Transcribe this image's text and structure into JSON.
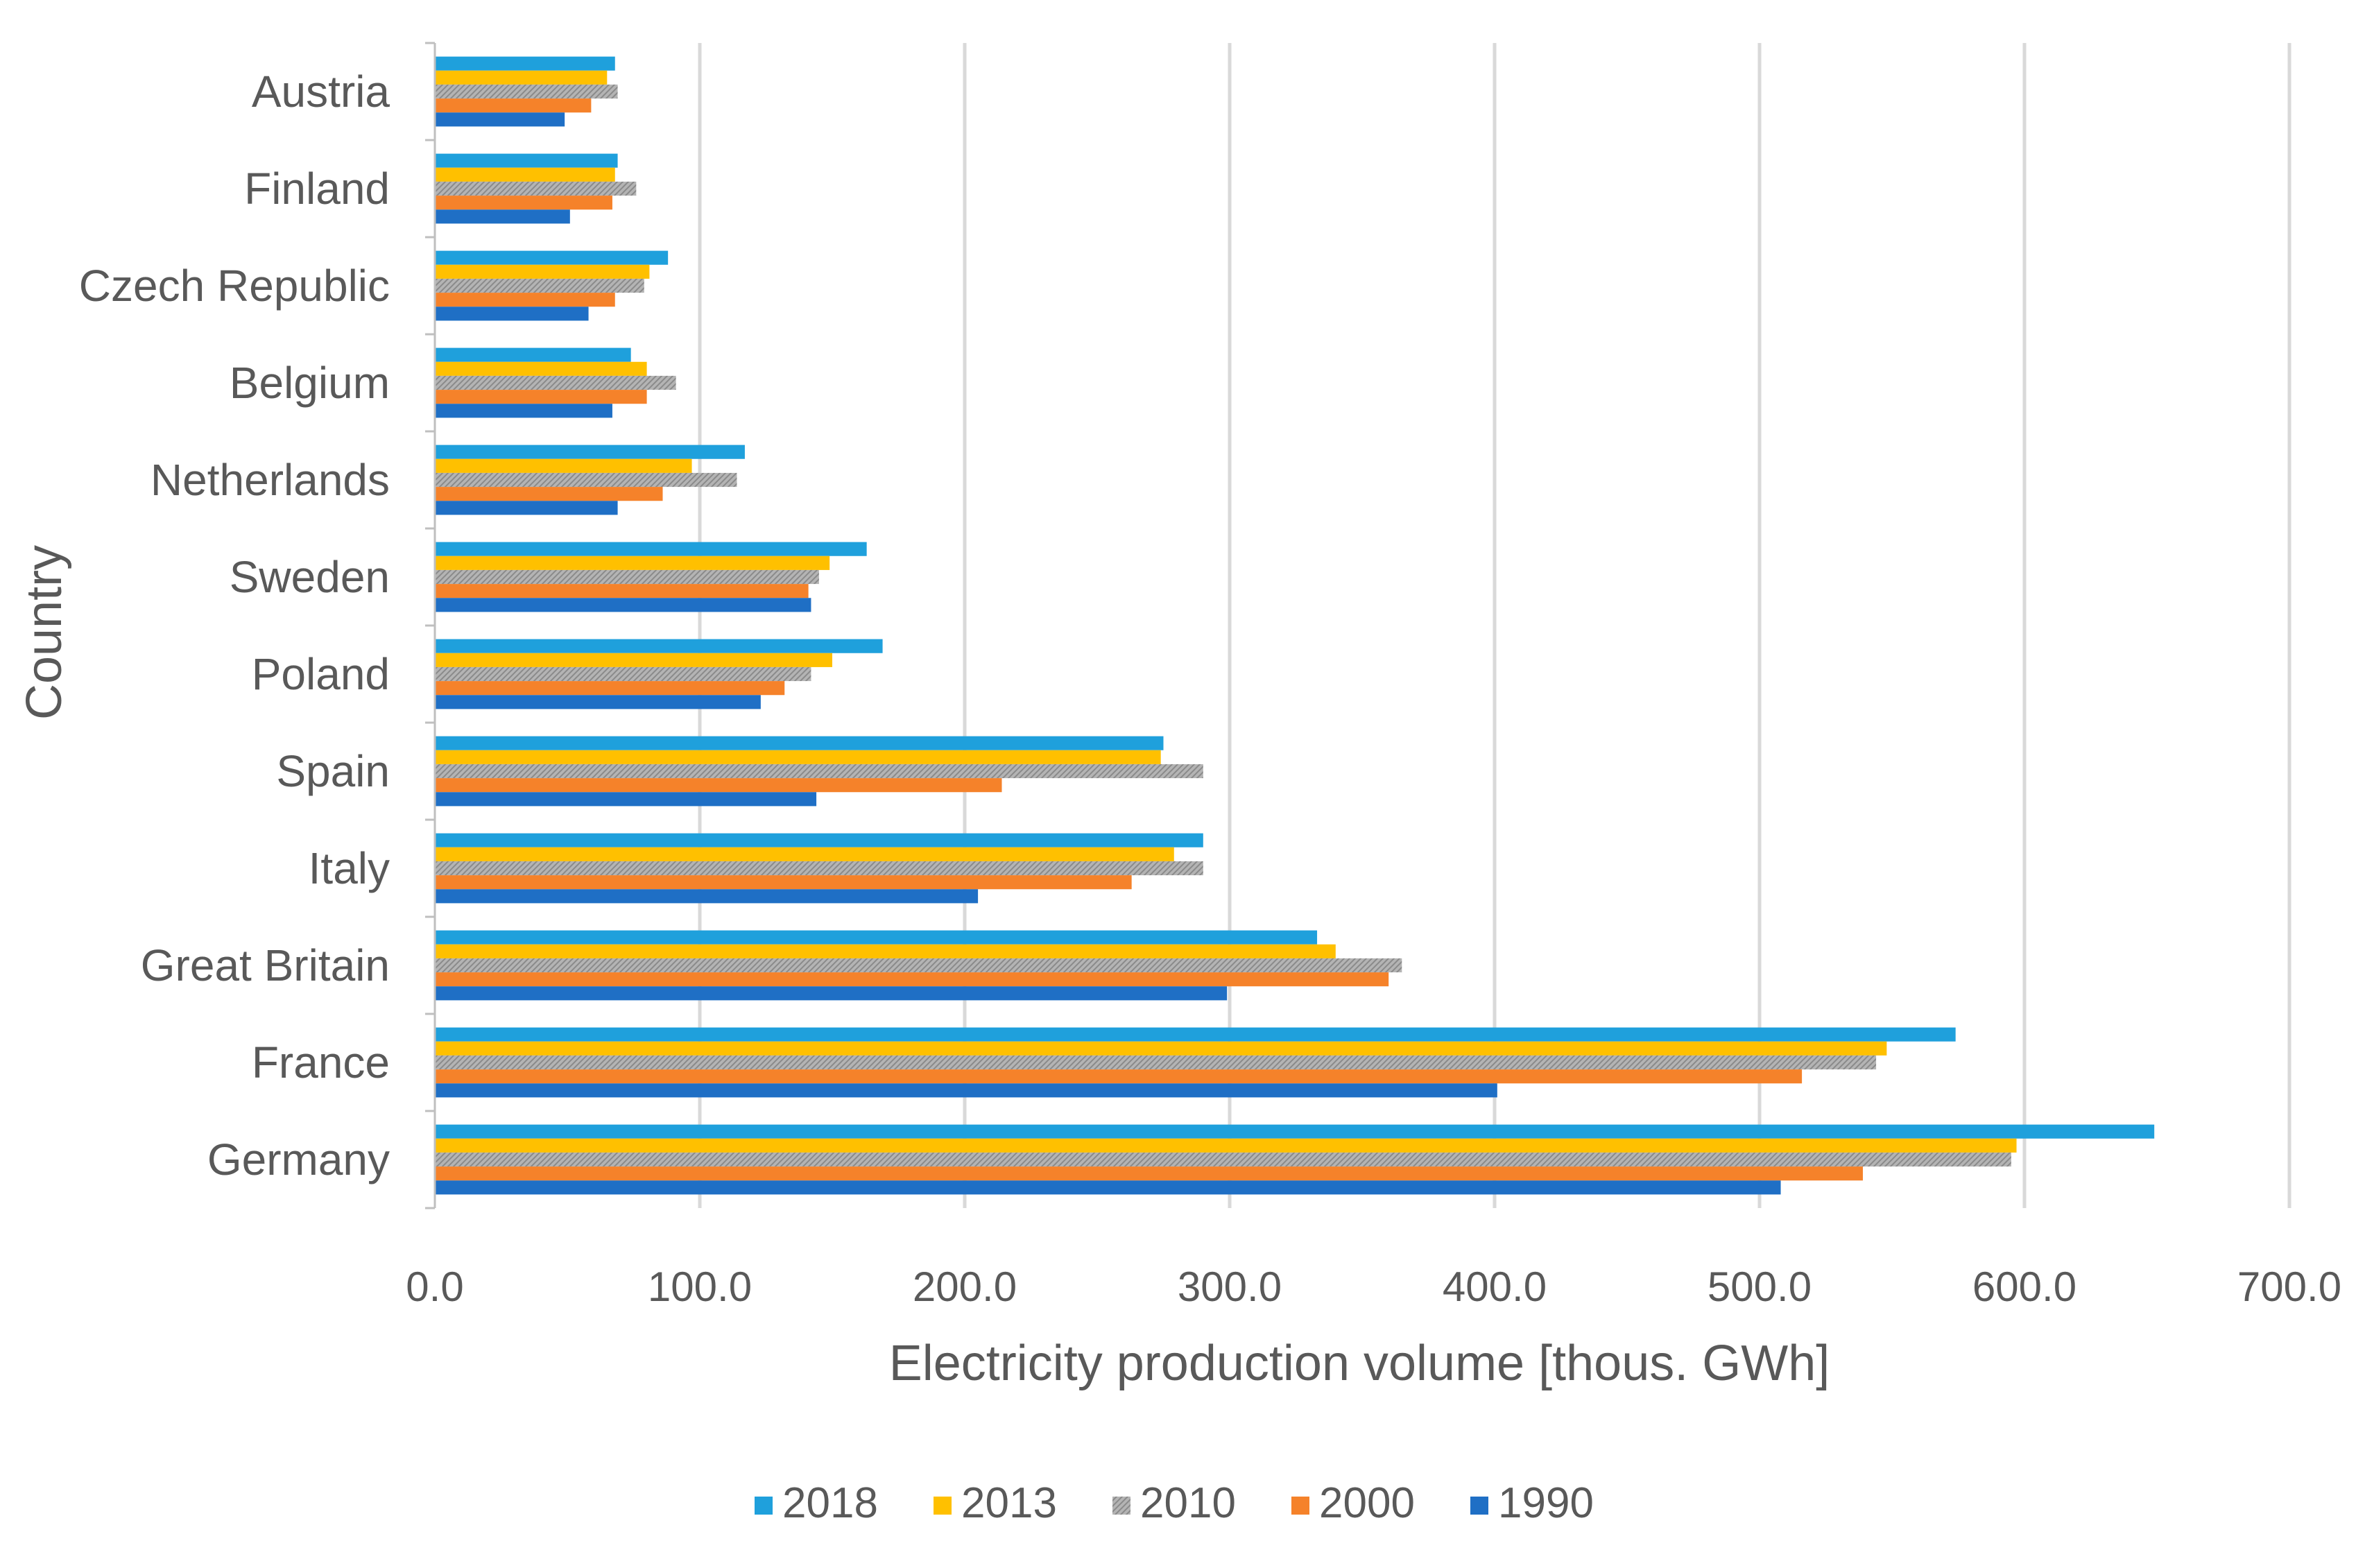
{
  "chart_data": {
    "type": "bar",
    "orientation": "horizontal",
    "title": "",
    "xlabel": "Electricity production volume [thous. GWh]",
    "ylabel": "Country",
    "xlim": [
      0,
      700
    ],
    "x_ticks": [
      "0.0",
      "100.0",
      "200.0",
      "300.0",
      "400.0",
      "500.0",
      "600.0",
      "700.0"
    ],
    "x_tick_values": [
      0,
      100,
      200,
      300,
      400,
      500,
      600,
      700
    ],
    "grid": "vertical",
    "legend_position": "bottom",
    "categories": [
      "Austria",
      "Finland",
      "Czech Republic",
      "Belgium",
      "Netherlands",
      "Sweden",
      "Poland",
      "Spain",
      "Italy",
      "Great Britain",
      "France",
      "Germany"
    ],
    "series": [
      {
        "name": "2018",
        "color": "#1FA0DC",
        "pattern": "solid",
        "values": [
          68,
          69,
          88,
          74,
          117,
          163,
          169,
          275,
          290,
          333,
          574,
          649
        ]
      },
      {
        "name": "2013",
        "color": "#FFC000",
        "pattern": "solid",
        "values": [
          65,
          68,
          81,
          80,
          97,
          149,
          150,
          274,
          279,
          340,
          548,
          597
        ]
      },
      {
        "name": "2010",
        "color": "#A5A5A5",
        "pattern": "hatched",
        "values": [
          69,
          76,
          79,
          91,
          114,
          145,
          142,
          290,
          290,
          365,
          544,
          595
        ]
      },
      {
        "name": "2000",
        "color": "#F5822A",
        "pattern": "solid",
        "values": [
          59,
          67,
          68,
          80,
          86,
          141,
          132,
          214,
          263,
          360,
          516,
          539
        ]
      },
      {
        "name": "1990",
        "color": "#1F6FC5",
        "pattern": "solid",
        "values": [
          49,
          51,
          58,
          67,
          69,
          142,
          123,
          144,
          205,
          299,
          401,
          508
        ]
      }
    ]
  }
}
